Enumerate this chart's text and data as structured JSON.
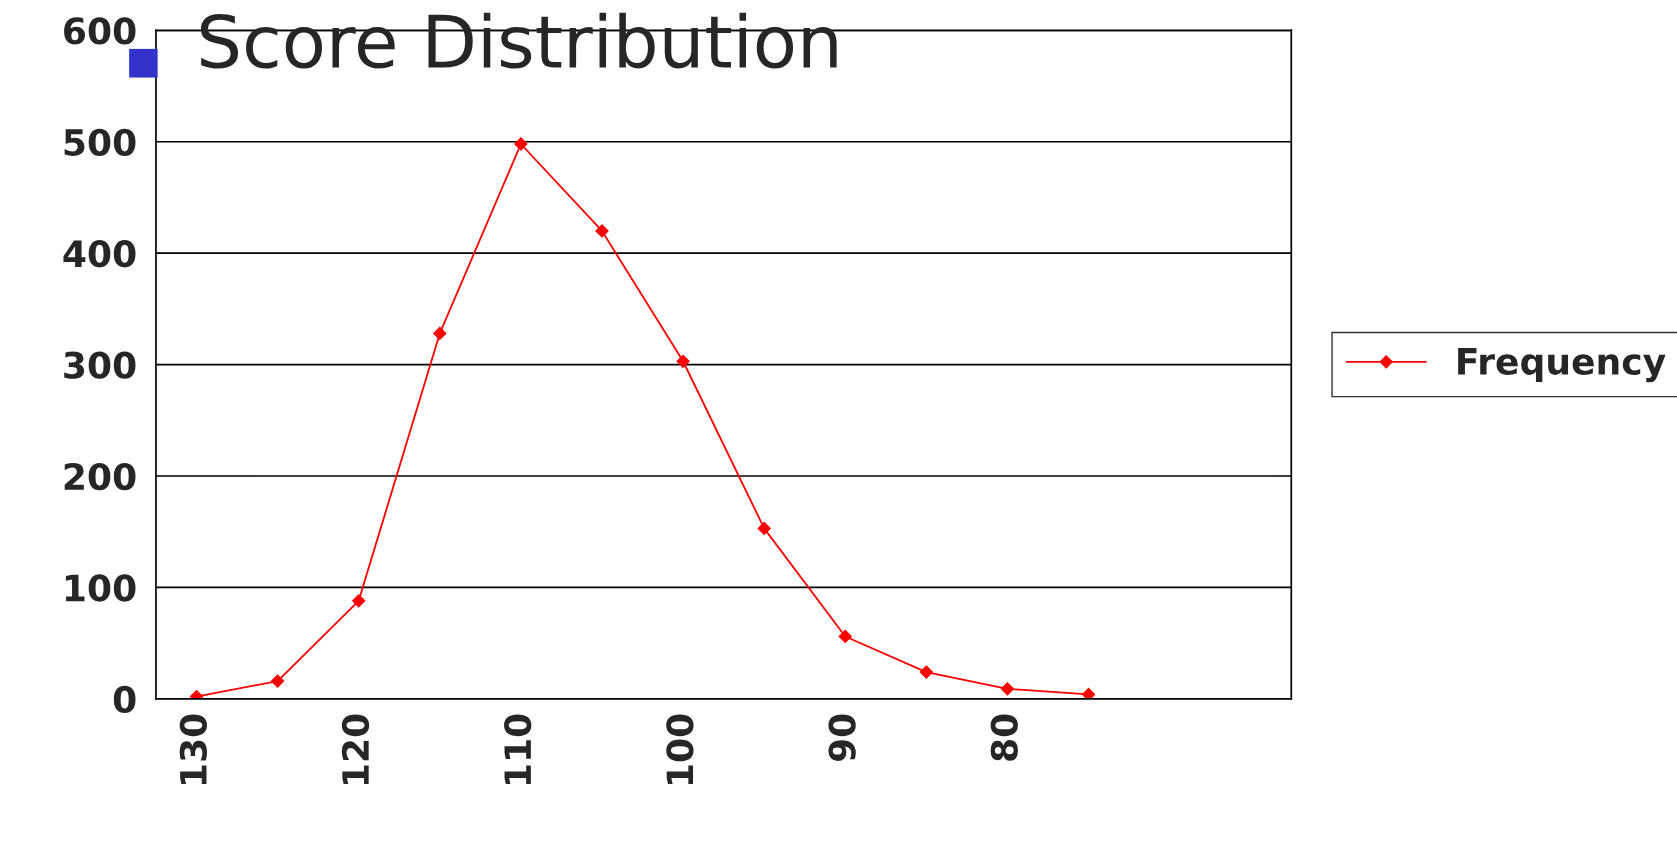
{
  "chart_data": {
    "type": "line",
    "title": "Score Distribution",
    "categories": [
      "130",
      null,
      "120",
      null,
      "110",
      null,
      "100",
      null,
      "90",
      null,
      "80",
      null,
      null,
      null
    ],
    "series": [
      {
        "name": "Frequency",
        "color": "#ff0000",
        "values": [
          2,
          16,
          88,
          328,
          498,
          420,
          303,
          153,
          56,
          24,
          9,
          4,
          null,
          null
        ]
      }
    ],
    "ylim": [
      0,
      600
    ],
    "yticks": [
      0,
      100,
      200,
      300,
      400,
      500,
      600
    ],
    "grid": "y",
    "legend": "right",
    "marker": "diamond",
    "line_style": "solid"
  }
}
